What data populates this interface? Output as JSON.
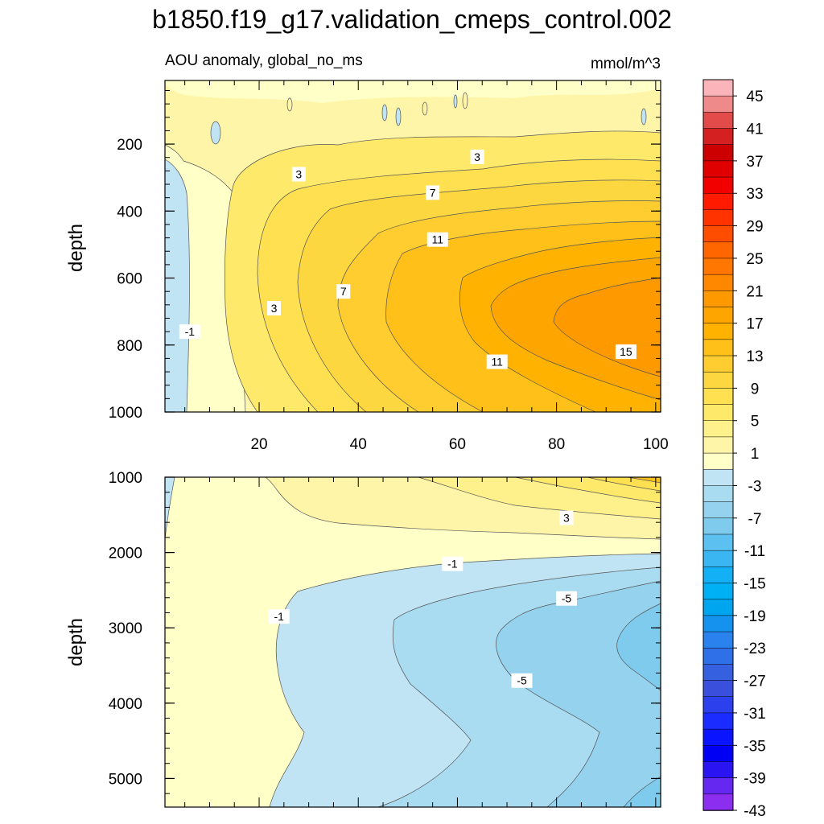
{
  "chart_data": {
    "type": "heatmap",
    "title": "b1850.f19_g17.validation_cmeps_control.002",
    "subtitle_left": "AOU anomaly, global_no_ms",
    "subtitle_right": "mmol/m^3",
    "x_range": [
      1,
      101
    ],
    "x_ticks": [
      20,
      40,
      60,
      80,
      100
    ],
    "panels": [
      {
        "name": "upper",
        "ylabel": "depth",
        "y_range": [
          10,
          1000
        ],
        "y_ticks": [
          200,
          400,
          600,
          800,
          1000
        ],
        "contour_labels": [
          {
            "text": "3",
            "x": 28,
            "y": 290
          },
          {
            "text": "3",
            "x": 64,
            "y": 238
          },
          {
            "text": "7",
            "x": 55,
            "y": 345
          },
          {
            "text": "11",
            "x": 56,
            "y": 485
          },
          {
            "text": "-1",
            "x": 6,
            "y": 760
          },
          {
            "text": "3",
            "x": 23,
            "y": 690
          },
          {
            "text": "7",
            "x": 37,
            "y": 640
          },
          {
            "text": "11",
            "x": 68,
            "y": 850
          },
          {
            "text": "15",
            "x": 94,
            "y": 820
          }
        ]
      },
      {
        "name": "lower",
        "ylabel": "depth",
        "y_range": [
          1000,
          5380
        ],
        "y_ticks": [
          1000,
          2000,
          3000,
          4000,
          5000
        ],
        "contour_labels": [
          {
            "text": "3",
            "x": 82,
            "y": 1540
          },
          {
            "text": "-1",
            "x": 59,
            "y": 2150
          },
          {
            "text": "-5",
            "x": 82,
            "y": 2610
          },
          {
            "text": "-1",
            "x": 24,
            "y": 2850
          },
          {
            "text": "-5",
            "x": 73,
            "y": 3700
          }
        ]
      }
    ],
    "colorbar": {
      "labels": [
        "45",
        "41",
        "37",
        "33",
        "29",
        "25",
        "21",
        "17",
        "13",
        "9",
        "5",
        "1",
        "-3",
        "-7",
        "-11",
        "-15",
        "-19",
        "-23",
        "-27",
        "-31",
        "-35",
        "-39",
        "-43"
      ],
      "colors": [
        "#fbb4b9",
        "#ef8a8a",
        "#e34a4a",
        "#d42020",
        "#cc0000",
        "#e00000",
        "#f20000",
        "#ff1a00",
        "#ff3300",
        "#ff4d00",
        "#ff6600",
        "#ff7700",
        "#ff8800",
        "#ff9900",
        "#ffa500",
        "#ffb300",
        "#ffc01a",
        "#ffcd30",
        "#fdd73f",
        "#fee050",
        "#fee96a",
        "#fef08a",
        "#fff5a8",
        "#ffffc8",
        "#c0e4f4",
        "#a9dbf1",
        "#94d2ee",
        "#7ecbee",
        "#5cc1f0",
        "#3ab7f2",
        "#14b0f5",
        "#00b0f5",
        "#00a5f0",
        "#1592ee",
        "#2a82ee",
        "#2f70e8",
        "#3560e0",
        "#3a50dc",
        "#2c40ee",
        "#1a2cff",
        "#0a14ff",
        "#0000f5",
        "#2a14f2",
        "#6428f0",
        "#8c2ef0"
      ]
    }
  }
}
